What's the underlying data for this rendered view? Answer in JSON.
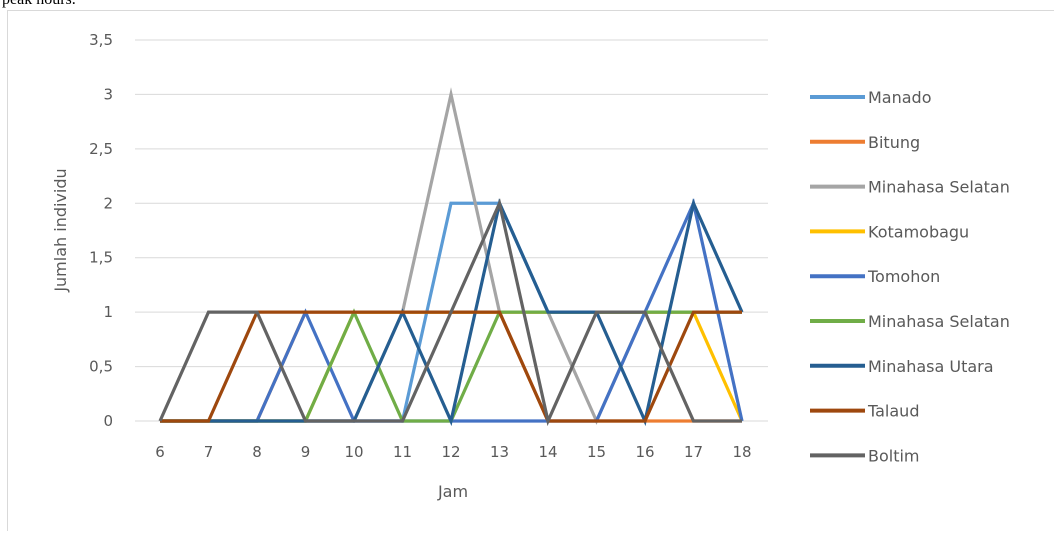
{
  "page": {
    "top_text": "peak hours."
  },
  "chart_data": {
    "type": "line",
    "title": "",
    "xlabel": "Jam",
    "ylabel": "Jumlah individu",
    "x": [
      "6",
      "7",
      "8",
      "9",
      "10",
      "11",
      "12",
      "13",
      "14",
      "15",
      "16",
      "17",
      "18"
    ],
    "ylim": [
      0,
      3.5
    ],
    "y_ticks": [
      "0",
      "0,5",
      "1",
      "1,5",
      "2",
      "2,5",
      "3",
      "3,5"
    ],
    "grid": true,
    "legend_position": "right",
    "series": [
      {
        "name": "Manado",
        "color": "#5b9bd5",
        "values": [
          0,
          0,
          0,
          0,
          0,
          0,
          2,
          2,
          1,
          1,
          1,
          1,
          1
        ]
      },
      {
        "name": "Bitung",
        "color": "#ed7d31",
        "values": [
          0,
          0,
          0,
          1,
          1,
          1,
          1,
          1,
          0,
          0,
          0,
          0,
          0
        ]
      },
      {
        "name": "Minahasa Selatan",
        "color": "#a5a5a5",
        "values": [
          0,
          0,
          0,
          0,
          0,
          1,
          3,
          1,
          1,
          0,
          1,
          1,
          1
        ]
      },
      {
        "name": "Kotamobagu",
        "color": "#ffc000",
        "values": [
          0,
          0,
          0,
          0,
          1,
          1,
          1,
          1,
          1,
          1,
          1,
          1,
          0
        ]
      },
      {
        "name": "Tomohon",
        "color": "#4472c4",
        "values": [
          0,
          0,
          0,
          1,
          0,
          0,
          0,
          0,
          0,
          0,
          1,
          2,
          0
        ]
      },
      {
        "name": "Minahasa Selatan",
        "color": "#70ad47",
        "values": [
          0,
          0,
          0,
          0,
          1,
          0,
          0,
          1,
          1,
          1,
          1,
          1,
          1
        ]
      },
      {
        "name": "Minahasa Utara",
        "color": "#255e91",
        "values": [
          0,
          0,
          0,
          0,
          0,
          1,
          0,
          2,
          1,
          1,
          0,
          2,
          1
        ]
      },
      {
        "name": "Talaud",
        "color": "#9e480e",
        "values": [
          0,
          0,
          1,
          1,
          1,
          1,
          1,
          1,
          0,
          0,
          0,
          1,
          1
        ]
      },
      {
        "name": "Boltim",
        "color": "#636363",
        "values": [
          0,
          1,
          1,
          0,
          0,
          0,
          1,
          2,
          0,
          1,
          1,
          0,
          0
        ]
      }
    ]
  }
}
